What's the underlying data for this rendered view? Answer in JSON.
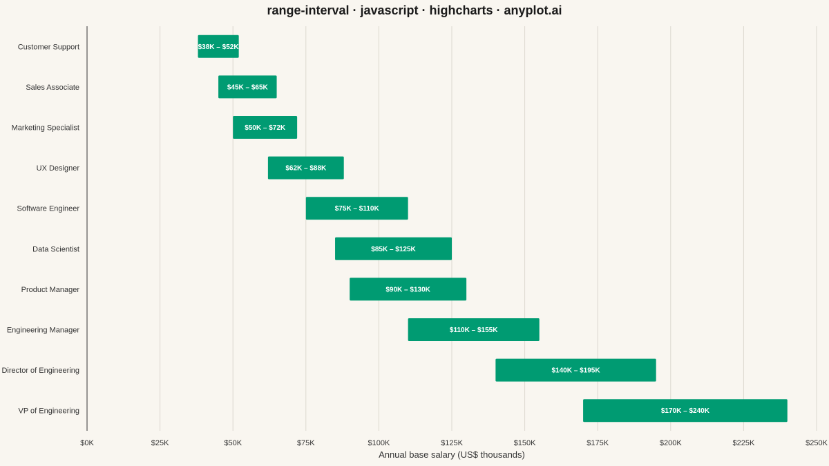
{
  "title": "range-interval · javascript · highcharts · anyplot.ai",
  "chart_data": {
    "type": "bar",
    "orientation": "horizontal",
    "title": "range-interval · javascript · highcharts · anyplot.ai",
    "xlabel": "Annual base salary (US$ thousands)",
    "ylabel": "",
    "xlim": [
      0,
      250
    ],
    "x_ticks": [
      0,
      25,
      50,
      75,
      100,
      125,
      150,
      175,
      200,
      225,
      250
    ],
    "x_tick_labels": [
      "$0K",
      "$25K",
      "$50K",
      "$75K",
      "$100K",
      "$125K",
      "$150K",
      "$175K",
      "$200K",
      "$225K",
      "$250K"
    ],
    "grid": "vertical",
    "legend": "none",
    "bar_color": "#009b72",
    "categories": [
      "Customer Support",
      "Sales Associate",
      "Marketing Specialist",
      "UX Designer",
      "Software Engineer",
      "Data Scientist",
      "Product Manager",
      "Engineering Manager",
      "Director of Engineering",
      "VP of Engineering"
    ],
    "ranges": [
      {
        "low": 38,
        "high": 52,
        "label": "$38K – $52K"
      },
      {
        "low": 45,
        "high": 65,
        "label": "$45K – $65K"
      },
      {
        "low": 50,
        "high": 72,
        "label": "$50K – $72K"
      },
      {
        "low": 62,
        "high": 88,
        "label": "$62K – $88K"
      },
      {
        "low": 75,
        "high": 110,
        "label": "$75K – $110K"
      },
      {
        "low": 85,
        "high": 125,
        "label": "$85K – $125K"
      },
      {
        "low": 90,
        "high": 130,
        "label": "$90K – $130K"
      },
      {
        "low": 110,
        "high": 155,
        "label": "$110K – $155K"
      },
      {
        "low": 140,
        "high": 195,
        "label": "$140K – $195K"
      },
      {
        "low": 170,
        "high": 240,
        "label": "$170K – $240K"
      }
    ]
  }
}
